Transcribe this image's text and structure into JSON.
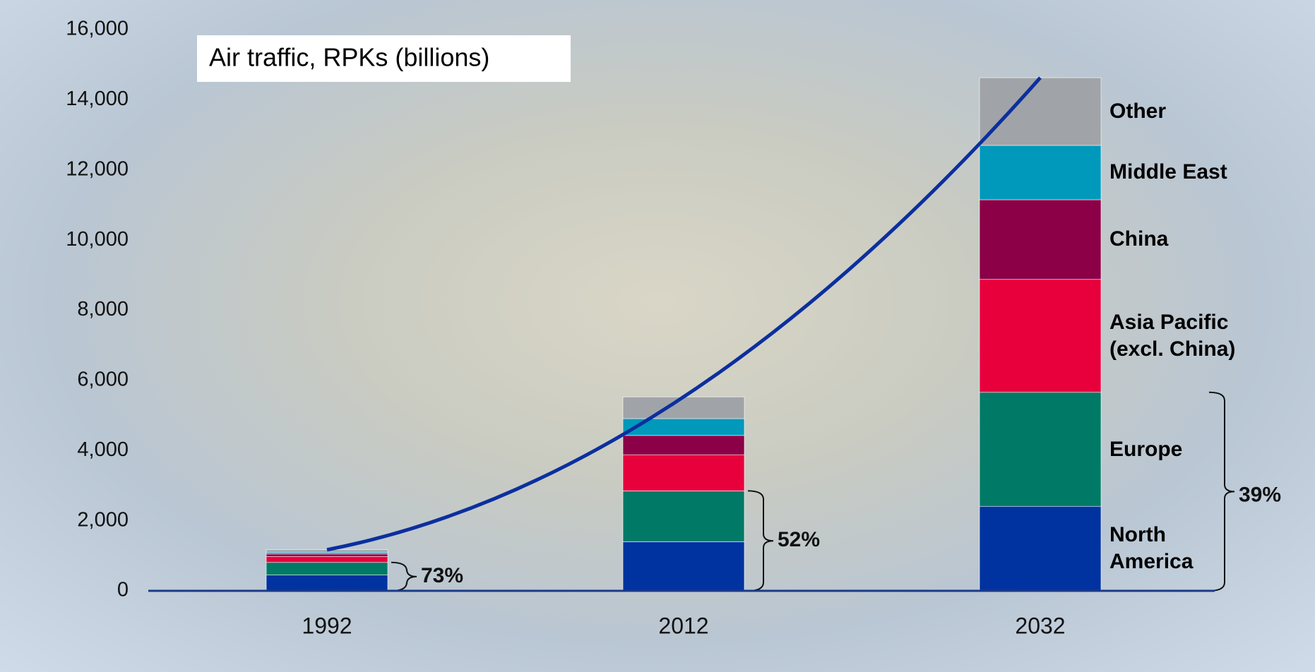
{
  "chart_data": {
    "type": "stacked_bar",
    "title": "Air traffic, RPKs (billions)",
    "categories": [
      "1992",
      "2012",
      "2032"
    ],
    "series": [
      {
        "name": "North\nAmerica",
        "color": "#0033a0",
        "values": [
          450,
          1400,
          2410
        ]
      },
      {
        "name": "Europe",
        "color": "#007a66",
        "values": [
          360,
          1450,
          3250
        ]
      },
      {
        "name": "Asia Pacific\n(excl. China)",
        "color": "#e8003c",
        "values": [
          170,
          1030,
          3220
        ]
      },
      {
        "name": "China",
        "color": "#8b0046",
        "values": [
          70,
          550,
          2270
        ]
      },
      {
        "name": "Middle East",
        "color": "#0099bb",
        "values": [
          50,
          480,
          1550
        ]
      },
      {
        "name": "Other",
        "color": "#a0a4a8",
        "values": [
          70,
          620,
          1930
        ]
      }
    ],
    "brace_labels": [
      "73%",
      "52%",
      "39%"
    ],
    "ylim": [
      0,
      16000
    ],
    "yticks": [
      0,
      {
        "value": 2000,
        "label": "2,000"
      },
      {
        "value": 4000,
        "label": "4,000"
      },
      {
        "value": 6000,
        "label": "6,000"
      },
      {
        "value": 8000,
        "label": "8,000"
      },
      {
        "value": 10000,
        "label": "10,000"
      },
      {
        "value": 12000,
        "label": "12,000"
      },
      {
        "value": 14000,
        "label": "14,000"
      },
      {
        "value": 16000,
        "label": "16,000"
      }
    ],
    "line_color": "#0b2f9e"
  }
}
